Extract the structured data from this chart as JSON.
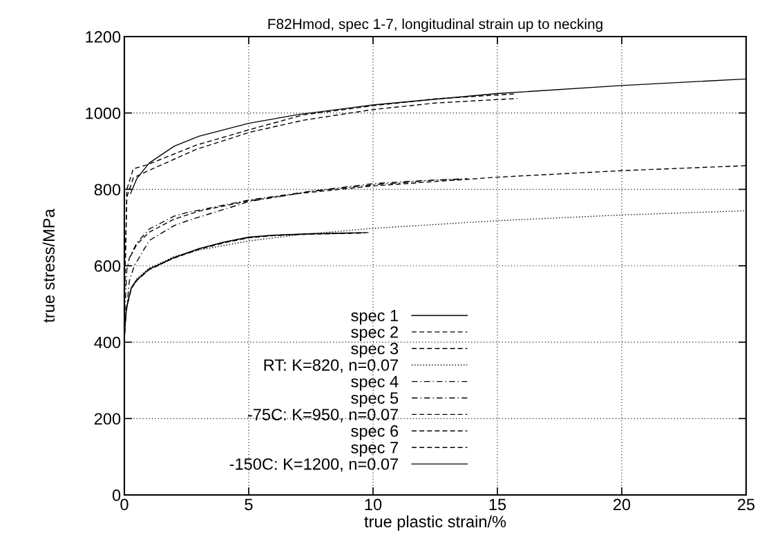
{
  "chart_data": {
    "type": "line",
    "title": "F82Hmod, spec 1-7, longitudinal strain up to necking",
    "xlabel": "true plastic strain/%",
    "ylabel": "true stress/MPa",
    "xlim": [
      0,
      25
    ],
    "ylim": [
      0,
      1200
    ],
    "xticks": [
      0,
      5,
      10,
      15,
      20,
      25
    ],
    "yticks": [
      0,
      200,
      400,
      600,
      800,
      1000,
      1200
    ],
    "grid": true,
    "legend": "bottom",
    "series": [
      {
        "name": "spec 1",
        "color": "#000000",
        "line_style": "solid",
        "x": [
          0,
          0.05,
          0.1,
          0.28,
          0.5,
          1,
          1.3,
          2,
          3,
          4,
          5,
          6,
          7.5,
          9,
          9.8
        ],
        "values": [
          410,
          470,
          495,
          543,
          563,
          592,
          600,
          622,
          645,
          662,
          675,
          680,
          684,
          686,
          687
        ]
      },
      {
        "name": "spec 2",
        "color": "#000000",
        "line_style": "dashed",
        "x": [
          0,
          0.05,
          0.1,
          0.28,
          0.5,
          1,
          1.3,
          2,
          3,
          4,
          5,
          6,
          7.5,
          9,
          9.7
        ],
        "values": [
          405,
          468,
          493,
          540,
          562,
          590,
          599,
          621,
          644,
          661,
          674,
          680,
          683,
          685,
          686
        ]
      },
      {
        "name": "spec 3",
        "color": "#000000",
        "line_style": "dashed",
        "x": [
          0,
          0.05,
          0.1,
          0.28,
          0.5,
          1,
          1.3,
          2,
          3,
          4,
          5,
          6,
          7.5,
          9,
          9.5
        ],
        "values": [
          400,
          465,
          492,
          541,
          561,
          591,
          600,
          620,
          643,
          660,
          673,
          679,
          683,
          685,
          686
        ]
      },
      {
        "name": "RT: K=820, n=0.07",
        "color": "#000000",
        "line_style": "dotted",
        "x": [
          0.25,
          0.5,
          1,
          2,
          3,
          5,
          7,
          10,
          15,
          20,
          25
        ],
        "values": [
          539,
          566,
          594,
          624,
          641,
          665,
          681,
          698,
          718,
          733,
          744
        ]
      },
      {
        "name": "spec 4",
        "color": "#000000",
        "line_style": "dashdot",
        "x": [
          0,
          0.1,
          0.2,
          0.5,
          1,
          2,
          2.5,
          5,
          7.5,
          10,
          12,
          13.5
        ],
        "values": [
          450,
          590,
          620,
          660,
          696,
          730,
          739,
          772,
          795,
          815,
          823,
          827
        ]
      },
      {
        "name": "spec 5",
        "color": "#000000",
        "line_style": "dashdot",
        "x": [
          0,
          0.2,
          0.4,
          1,
          2,
          2.5,
          5,
          7.5,
          10,
          12.5,
          13.8
        ],
        "values": [
          420,
          560,
          600,
          666,
          705,
          717,
          768,
          795,
          812,
          824,
          828
        ]
      },
      {
        "name": "-75C: K=950, n=0.07",
        "color": "#000000",
        "line_style": "dashed",
        "x": [
          0.25,
          0.5,
          1,
          2,
          3,
          5,
          7,
          10,
          15,
          20,
          25
        ],
        "values": [
          625,
          656,
          688,
          722,
          743,
          770,
          789,
          809,
          832,
          849,
          862
        ]
      },
      {
        "name": "spec 6",
        "color": "#000000",
        "line_style": "dashed",
        "x": [
          0,
          0.1,
          0.36,
          0.9,
          2.9,
          5.07,
          7.2,
          10,
          12.5,
          15.7
        ],
        "values": [
          500,
          800,
          854,
          864,
          916,
          957,
          995,
          1019,
          1037,
          1050
        ]
      },
      {
        "name": "spec 7",
        "color": "#000000",
        "line_style": "dashed",
        "x": [
          0,
          0.1,
          0.36,
          0.9,
          2.9,
          5.07,
          7.2,
          10,
          12.5,
          15.8
        ],
        "values": [
          500,
          780,
          830,
          847,
          905,
          950,
          981,
          1009,
          1026,
          1038
        ]
      },
      {
        "name": "-150C: K=1200, n=0.07",
        "color": "#000000",
        "line_style": "solid",
        "x": [
          0.25,
          0.5,
          1,
          2,
          3,
          5,
          7,
          10,
          15,
          20,
          25
        ],
        "values": [
          789,
          828,
          869,
          913,
          939,
          973,
          996,
          1021,
          1051,
          1072,
          1089
        ]
      }
    ]
  }
}
